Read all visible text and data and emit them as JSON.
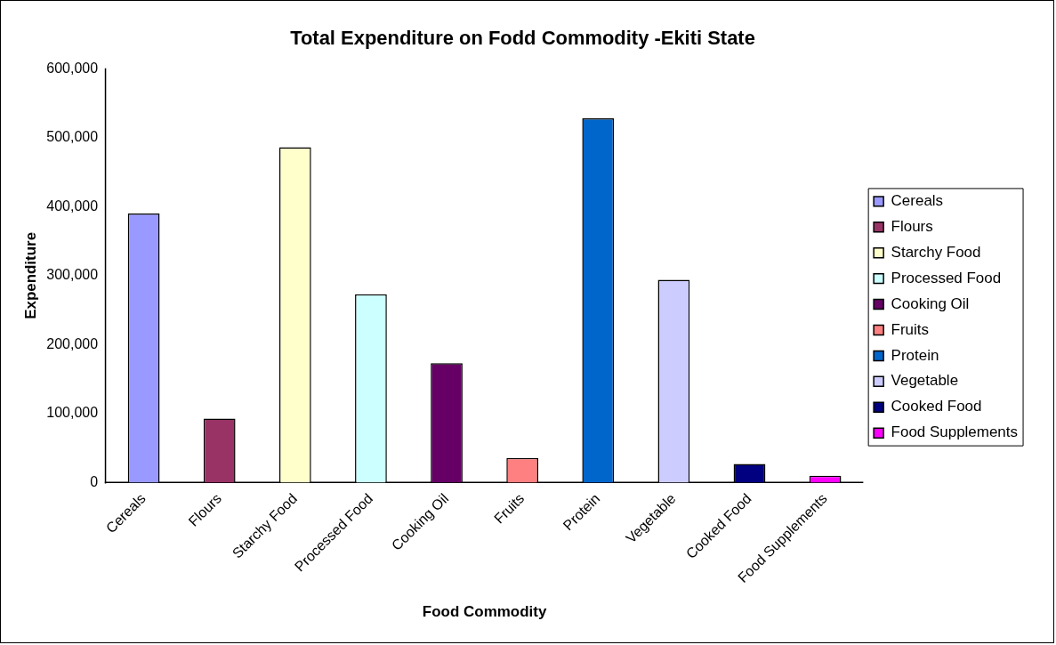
{
  "chart_data": {
    "type": "bar",
    "title": "Total Expenditure on Fodd Commodity -Ekiti State",
    "xlabel": "Food Commodity",
    "ylabel": "Expenditure",
    "categories": [
      "Cereals",
      "Flours",
      "Starchy Food",
      "Processed Food",
      "Cooking Oil",
      "Fruits",
      "Protein",
      "Vegetable",
      "Cooked Food",
      "Food Supplements"
    ],
    "series": [
      {
        "name": "Cereals",
        "color": "#9999ff",
        "values": [
          390000,
          null,
          null,
          null,
          null,
          null,
          null,
          null,
          null,
          null
        ]
      },
      {
        "name": "Flours",
        "color": "#993366",
        "values": [
          null,
          93000,
          null,
          null,
          null,
          null,
          null,
          null,
          null,
          null
        ]
      },
      {
        "name": "Starchy Food",
        "color": "#ffffcc",
        "values": [
          null,
          null,
          486000,
          null,
          null,
          null,
          null,
          null,
          null,
          null
        ]
      },
      {
        "name": "Processed Food",
        "color": "#ccffff",
        "values": [
          null,
          null,
          null,
          273000,
          null,
          null,
          null,
          null,
          null,
          null
        ]
      },
      {
        "name": "Cooking Oil",
        "color": "#660066",
        "values": [
          null,
          null,
          null,
          null,
          173000,
          null,
          null,
          null,
          null,
          null
        ]
      },
      {
        "name": "Fruits",
        "color": "#ff8080",
        "values": [
          null,
          null,
          null,
          null,
          null,
          36000,
          null,
          null,
          null,
          null
        ]
      },
      {
        "name": "Protein",
        "color": "#0066cc",
        "values": [
          null,
          null,
          null,
          null,
          null,
          null,
          528000,
          null,
          null,
          null
        ]
      },
      {
        "name": "Vegetable",
        "color": "#ccccff",
        "values": [
          null,
          null,
          null,
          null,
          null,
          null,
          null,
          294000,
          null,
          null
        ]
      },
      {
        "name": "Cooked Food",
        "color": "#000080",
        "values": [
          null,
          null,
          null,
          null,
          null,
          null,
          null,
          null,
          27000,
          null
        ]
      },
      {
        "name": "Food Supplements",
        "color": "#ff00ff",
        "values": [
          null,
          null,
          null,
          null,
          null,
          null,
          null,
          null,
          null,
          10000
        ]
      }
    ],
    "ylim": [
      0,
      600000
    ],
    "yticks": [
      0,
      {
        "value": 100000,
        "label": "100,000"
      },
      {
        "value": 200000,
        "label": "200,000"
      },
      {
        "value": 300000,
        "label": "300,000"
      },
      {
        "value": 400000,
        "label": "400,000"
      },
      {
        "value": 500000,
        "label": "500,000"
      },
      {
        "value": 600000,
        "label": "600,000"
      }
    ],
    "grid": false,
    "legend": "right"
  }
}
